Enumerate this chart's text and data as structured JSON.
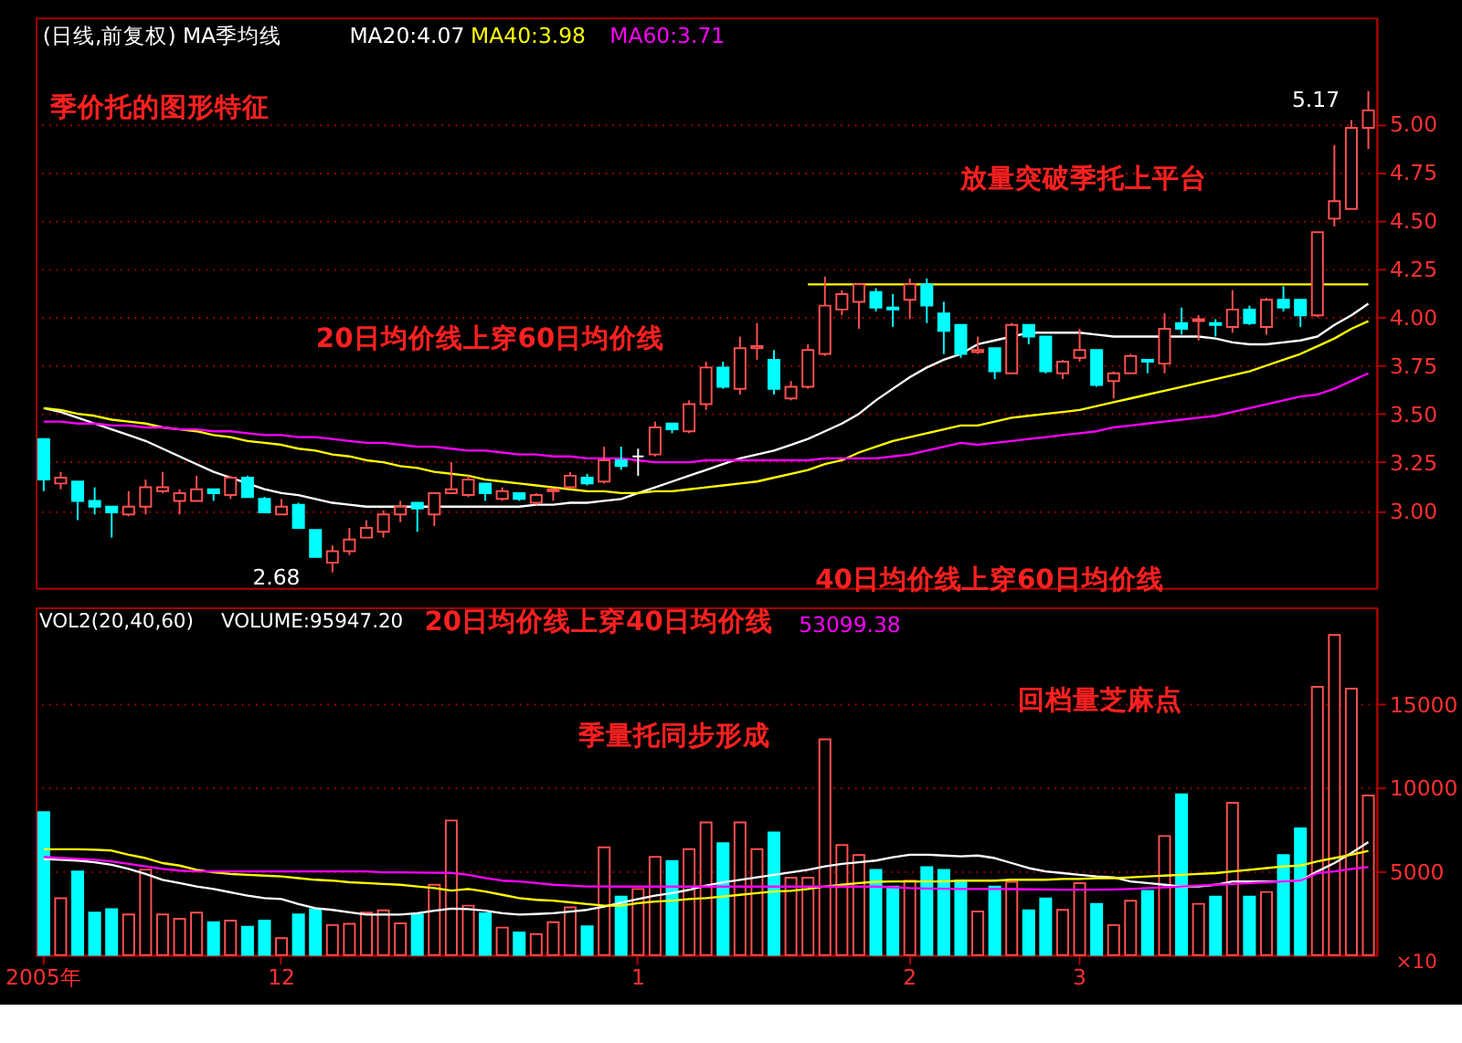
{
  "chart_data": [
    {
      "type": "candlestick",
      "title": "季价托的图形特征",
      "subtitle": "(日线,前复权) MA季均线",
      "categories": [
        null,
        null,
        null,
        null,
        null,
        null,
        null,
        null,
        null,
        null,
        null,
        null,
        null,
        null,
        null,
        null,
        null,
        null,
        null,
        null,
        null,
        null,
        null,
        null,
        null,
        null,
        null,
        null,
        null,
        null,
        null,
        null,
        null,
        null,
        null,
        null,
        null,
        null,
        null,
        null,
        null,
        null,
        null,
        null,
        null,
        null,
        null,
        null,
        null,
        null,
        null,
        null,
        null,
        null,
        null,
        null,
        null,
        null,
        null,
        null,
        null,
        null,
        null,
        null,
        null,
        null,
        null,
        null,
        null,
        null,
        null,
        null,
        null,
        null,
        null,
        null,
        null,
        null,
        null
      ],
      "ohlc": [
        [
          3.37,
          3.37,
          3.1,
          3.16
        ],
        [
          3.14,
          3.2,
          3.11,
          3.17
        ],
        [
          3.15,
          3.15,
          2.95,
          3.05
        ],
        [
          3.05,
          3.12,
          2.98,
          3.02
        ],
        [
          3.02,
          3.02,
          2.86,
          2.99
        ],
        [
          2.98,
          3.1,
          2.97,
          3.02
        ],
        [
          3.02,
          3.16,
          2.98,
          3.12
        ],
        [
          3.1,
          3.2,
          3.09,
          3.12
        ],
        [
          3.05,
          3.11,
          2.98,
          3.09
        ],
        [
          3.05,
          3.18,
          3.05,
          3.11
        ],
        [
          3.11,
          3.11,
          3.05,
          3.09
        ],
        [
          3.08,
          3.18,
          3.06,
          3.17
        ],
        [
          3.17,
          3.18,
          3.07,
          3.07
        ],
        [
          3.06,
          3.07,
          2.99,
          2.99
        ],
        [
          2.98,
          3.06,
          2.98,
          3.02
        ],
        [
          3.03,
          3.04,
          2.91,
          2.91
        ],
        [
          2.9,
          2.9,
          2.76,
          2.76
        ],
        [
          2.73,
          2.82,
          2.68,
          2.79
        ],
        [
          2.79,
          2.91,
          2.77,
          2.85
        ],
        [
          2.86,
          2.95,
          2.86,
          2.91
        ],
        [
          2.89,
          3.0,
          2.86,
          2.98
        ],
        [
          2.98,
          3.05,
          2.94,
          3.02
        ],
        [
          3.04,
          3.04,
          2.89,
          3.01
        ],
        [
          2.98,
          3.09,
          2.92,
          3.09
        ],
        [
          3.09,
          3.25,
          3.09,
          3.11
        ],
        [
          3.08,
          3.18,
          3.07,
          3.16
        ],
        [
          3.14,
          3.14,
          3.05,
          3.09
        ],
        [
          3.06,
          3.12,
          3.05,
          3.1
        ],
        [
          3.09,
          3.09,
          3.05,
          3.06
        ],
        [
          3.04,
          3.09,
          3.03,
          3.08
        ],
        [
          3.1,
          3.11,
          3.05,
          3.11
        ],
        [
          3.12,
          3.2,
          3.12,
          3.18
        ],
        [
          3.17,
          3.19,
          3.13,
          3.14
        ],
        [
          3.15,
          3.33,
          3.14,
          3.26
        ],
        [
          3.26,
          3.33,
          3.21,
          3.23
        ],
        [
          3.28,
          3.32,
          3.18,
          3.28
        ],
        [
          3.29,
          3.46,
          3.28,
          3.43
        ],
        [
          3.45,
          3.45,
          3.4,
          3.42
        ],
        [
          3.41,
          3.57,
          3.4,
          3.55
        ],
        [
          3.55,
          3.77,
          3.52,
          3.74
        ],
        [
          3.74,
          3.77,
          3.63,
          3.64
        ],
        [
          3.63,
          3.9,
          3.6,
          3.84
        ],
        [
          3.84,
          3.97,
          3.78,
          3.85
        ],
        [
          3.78,
          3.83,
          3.6,
          3.63
        ],
        [
          3.58,
          3.67,
          3.57,
          3.64
        ],
        [
          3.64,
          3.86,
          3.63,
          3.83
        ],
        [
          3.81,
          4.21,
          3.8,
          4.06
        ],
        [
          4.04,
          4.14,
          4.01,
          4.12
        ],
        [
          4.08,
          4.17,
          3.94,
          4.17
        ],
        [
          4.13,
          4.15,
          4.03,
          4.05
        ],
        [
          4.05,
          4.12,
          3.95,
          4.04
        ],
        [
          4.09,
          4.2,
          3.99,
          4.17
        ],
        [
          4.17,
          4.2,
          3.97,
          4.06
        ],
        [
          4.02,
          4.08,
          3.81,
          3.93
        ],
        [
          3.96,
          3.96,
          3.79,
          3.81
        ],
        [
          3.82,
          3.9,
          3.81,
          3.83
        ],
        [
          3.84,
          3.84,
          3.68,
          3.72
        ],
        [
          3.71,
          3.97,
          3.71,
          3.96
        ],
        [
          3.96,
          3.96,
          3.86,
          3.9
        ],
        [
          3.9,
          3.9,
          3.71,
          3.72
        ],
        [
          3.71,
          3.78,
          3.68,
          3.77
        ],
        [
          3.79,
          3.94,
          3.77,
          3.83
        ],
        [
          3.83,
          3.83,
          3.64,
          3.65
        ],
        [
          3.67,
          3.72,
          3.58,
          3.71
        ],
        [
          3.71,
          3.81,
          3.71,
          3.8
        ],
        [
          3.78,
          3.78,
          3.71,
          3.77
        ],
        [
          3.76,
          4.02,
          3.71,
          3.94
        ],
        [
          3.97,
          4.05,
          3.91,
          3.94
        ],
        [
          3.98,
          4.01,
          3.88,
          3.99
        ],
        [
          3.97,
          3.99,
          3.9,
          3.96
        ],
        [
          3.95,
          4.14,
          3.92,
          4.04
        ],
        [
          4.04,
          4.06,
          3.96,
          3.97
        ],
        [
          3.95,
          4.1,
          3.91,
          4.09
        ],
        [
          4.09,
          4.16,
          4.03,
          4.05
        ],
        [
          4.09,
          4.09,
          3.95,
          4.01
        ],
        [
          4.01,
          4.44,
          4.0,
          4.44
        ],
        [
          4.51,
          4.89,
          4.47,
          4.6
        ],
        [
          4.56,
          5.02,
          4.56,
          4.98
        ],
        [
          4.98,
          5.17,
          4.87,
          5.07
        ]
      ],
      "colors": [
        "#00ffff",
        "#ff5050",
        "#00ffff",
        "#00ffff",
        "#00ffff",
        "#ff5050",
        "#ff5050",
        "#ff5050",
        "#ff5050",
        "#ff5050",
        "#00ffff",
        "#ff5050",
        "#00ffff",
        "#00ffff",
        "#ff5050",
        "#00ffff",
        "#00ffff",
        "#ff5050",
        "#ff5050",
        "#ff5050",
        "#ff5050",
        "#ff5050",
        "#00ffff",
        "#ff5050",
        "#ff5050",
        "#ff5050",
        "#00ffff",
        "#ff5050",
        "#00ffff",
        "#ff5050",
        "#ff5050",
        "#ff5050",
        "#00ffff",
        "#ff5050",
        "#00ffff",
        "#ffffff",
        "#ff5050",
        "#00ffff",
        "#ff5050",
        "#ff5050",
        "#00ffff",
        "#ff5050",
        "#ff5050",
        "#00ffff",
        "#ff5050",
        "#ff5050",
        "#ff5050",
        "#ff5050",
        "#ff5050",
        "#00ffff",
        "#00ffff",
        "#ff5050",
        "#00ffff",
        "#00ffff",
        "#00ffff",
        "#ff5050",
        "#00ffff",
        "#ff5050",
        "#00ffff",
        "#00ffff",
        "#ff5050",
        "#ff5050",
        "#00ffff",
        "#ff5050",
        "#ff5050",
        "#00ffff",
        "#ff5050",
        "#00ffff",
        "#ff5050",
        "#00ffff",
        "#ff5050",
        "#00ffff",
        "#ff5050",
        "#00ffff",
        "#00ffff",
        "#ff5050",
        "#ff5050",
        "#ff5050",
        "#ff5050"
      ],
      "series": [
        {
          "type": "line",
          "name": "MA20:4.07",
          "color": "#ffffff",
          "values": [
            3.53,
            3.51,
            3.48,
            3.45,
            3.42,
            3.39,
            3.36,
            3.32,
            3.28,
            3.24,
            3.2,
            3.17,
            3.14,
            3.11,
            3.09,
            3.08,
            3.06,
            3.04,
            3.03,
            3.02,
            3.02,
            3.02,
            3.02,
            3.02,
            3.02,
            3.02,
            3.02,
            3.02,
            3.02,
            3.03,
            3.03,
            3.04,
            3.04,
            3.05,
            3.06,
            3.09,
            3.12,
            3.15,
            3.18,
            3.21,
            3.24,
            3.27,
            3.29,
            3.31,
            3.34,
            3.37,
            3.41,
            3.45,
            3.5,
            3.57,
            3.63,
            3.69,
            3.74,
            3.78,
            3.81,
            3.86,
            3.88,
            3.9,
            3.92,
            3.92,
            3.92,
            3.92,
            3.91,
            3.9,
            3.9,
            3.9,
            3.9,
            3.9,
            3.9,
            3.89,
            3.87,
            3.86,
            3.86,
            3.87,
            3.88,
            3.9,
            3.96,
            4.01,
            4.07
          ]
        },
        {
          "type": "line",
          "name": "MA40:3.98",
          "color": "#ffff00",
          "values": [
            3.53,
            3.52,
            3.5,
            3.49,
            3.47,
            3.46,
            3.45,
            3.43,
            3.42,
            3.41,
            3.39,
            3.38,
            3.36,
            3.35,
            3.34,
            3.32,
            3.31,
            3.29,
            3.28,
            3.26,
            3.25,
            3.23,
            3.22,
            3.2,
            3.19,
            3.18,
            3.16,
            3.15,
            3.14,
            3.13,
            3.12,
            3.11,
            3.1,
            3.1,
            3.09,
            3.09,
            3.1,
            3.1,
            3.11,
            3.12,
            3.13,
            3.14,
            3.15,
            3.17,
            3.19,
            3.21,
            3.24,
            3.26,
            3.3,
            3.33,
            3.36,
            3.38,
            3.4,
            3.42,
            3.44,
            3.44,
            3.46,
            3.48,
            3.49,
            3.5,
            3.51,
            3.52,
            3.54,
            3.56,
            3.58,
            3.6,
            3.62,
            3.64,
            3.66,
            3.68,
            3.7,
            3.72,
            3.75,
            3.78,
            3.81,
            3.85,
            3.89,
            3.94,
            3.98
          ]
        },
        {
          "type": "line",
          "name": "MA60:3.71",
          "color": "#ff00ff",
          "values": [
            3.46,
            3.46,
            3.45,
            3.45,
            3.44,
            3.44,
            3.43,
            3.43,
            3.42,
            3.42,
            3.41,
            3.41,
            3.4,
            3.39,
            3.39,
            3.38,
            3.38,
            3.37,
            3.36,
            3.35,
            3.35,
            3.34,
            3.33,
            3.33,
            3.32,
            3.31,
            3.31,
            3.3,
            3.29,
            3.29,
            3.28,
            3.28,
            3.27,
            3.27,
            3.27,
            3.26,
            3.25,
            3.25,
            3.25,
            3.26,
            3.26,
            3.26,
            3.26,
            3.26,
            3.26,
            3.26,
            3.27,
            3.27,
            3.27,
            3.27,
            3.28,
            3.29,
            3.31,
            3.33,
            3.35,
            3.34,
            3.35,
            3.36,
            3.37,
            3.38,
            3.39,
            3.4,
            3.41,
            3.43,
            3.44,
            3.45,
            3.46,
            3.47,
            3.48,
            3.49,
            3.51,
            3.53,
            3.55,
            3.57,
            3.59,
            3.6,
            3.63,
            3.67,
            3.71
          ]
        },
        {
          "type": "line",
          "color": "#ffff00",
          "values": [
            null,
            null,
            null,
            null,
            null,
            null,
            null,
            null,
            null,
            null,
            null,
            null,
            null,
            null,
            null,
            null,
            null,
            null,
            null,
            null,
            null,
            null,
            null,
            null,
            null,
            null,
            null,
            null,
            null,
            null,
            null,
            null,
            null,
            null,
            null,
            null,
            null,
            null,
            null,
            null,
            null,
            null,
            null,
            null,
            null,
            4.17,
            4.17,
            4.17,
            4.17,
            4.17,
            4.17,
            4.17,
            4.17,
            4.17,
            4.17,
            4.17,
            4.17,
            4.17,
            4.17,
            4.17,
            4.17,
            4.17,
            4.17,
            4.17,
            4.17,
            4.17,
            4.17,
            4.17,
            4.17,
            4.17,
            4.17,
            4.17,
            4.17,
            4.17,
            4.17,
            4.17,
            4.17,
            4.17,
            4.17
          ]
        }
      ],
      "ylim": [
        2.6,
        5.55
      ],
      "yticks": [
        {
          "value": 3,
          "label": "3.00"
        },
        {
          "value": 3.25,
          "label": "3.25"
        },
        {
          "value": 3.5,
          "label": "3.50"
        },
        {
          "value": 3.75,
          "label": "3.75"
        },
        {
          "value": 4,
          "label": "4.00"
        },
        {
          "value": 4.25,
          "label": "4.25"
        },
        {
          "value": 4.5,
          "label": "4.50"
        },
        {
          "value": 4.75,
          "label": "4.75"
        },
        {
          "value": 5,
          "label": "5.00"
        }
      ],
      "grid": "y",
      "legend": "top left",
      "tick_labels": "y",
      "annotations": [
        "2.68",
        "5.17",
        "20日均价线上穿60日均价线",
        "40日均价线上穿60日均价线",
        "放量突破季托上平台"
      ]
    },
    {
      "type": "bar",
      "categories": [
        "2005年",
        null,
        null,
        null,
        null,
        null,
        null,
        null,
        null,
        null,
        null,
        null,
        null,
        null,
        "12",
        null,
        null,
        null,
        null,
        null,
        null,
        null,
        null,
        null,
        null,
        null,
        null,
        null,
        null,
        null,
        null,
        null,
        null,
        null,
        null,
        "1",
        null,
        null,
        null,
        null,
        null,
        null,
        null,
        null,
        null,
        null,
        null,
        null,
        null,
        null,
        null,
        "2",
        null,
        null,
        null,
        null,
        null,
        null,
        null,
        null,
        null,
        "3",
        null,
        null,
        null,
        null,
        null,
        null,
        null,
        null,
        null,
        null,
        null,
        null,
        null,
        null,
        null,
        null,
        null
      ],
      "values": [
        8550,
        3390,
        5000,
        2530,
        2740,
        2420,
        5110,
        2420,
        2170,
        2530,
        1960,
        2060,
        1690,
        2060,
        1000,
        2420,
        2740,
        1790,
        1860,
        2530,
        2670,
        1890,
        2420,
        4200,
        8050,
        2950,
        2490,
        1640,
        1350,
        1250,
        1960,
        2850,
        1710,
        6440,
        3490,
        3950,
        5870,
        5620,
        6330,
        7930,
        6690,
        7930,
        6330,
        7330,
        4630,
        4630,
        12910,
        6580,
        5980,
        5090,
        4090,
        4450,
        5260,
        5090,
        4450,
        2600,
        4090,
        4380,
        2670,
        3380,
        2700,
        4300,
        3060,
        1790,
        3240,
        3840,
        7120,
        9610,
        3060,
        3490,
        9110,
        3490,
        3770,
        5980,
        7580,
        16050,
        19150,
        15940,
        9540
      ],
      "colors": [
        "#00ffff",
        "#ff5050",
        "#00ffff",
        "#00ffff",
        "#00ffff",
        "#ff5050",
        "#ff5050",
        "#ff5050",
        "#ff5050",
        "#ff5050",
        "#00ffff",
        "#ff5050",
        "#00ffff",
        "#00ffff",
        "#ff5050",
        "#00ffff",
        "#00ffff",
        "#ff5050",
        "#ff5050",
        "#ff5050",
        "#ff5050",
        "#ff5050",
        "#00ffff",
        "#ff5050",
        "#ff5050",
        "#ff5050",
        "#00ffff",
        "#ff5050",
        "#00ffff",
        "#ff5050",
        "#ff5050",
        "#ff5050",
        "#00ffff",
        "#ff5050",
        "#00ffff",
        "#ff5050",
        "#ff5050",
        "#00ffff",
        "#ff5050",
        "#ff5050",
        "#00ffff",
        "#ff5050",
        "#ff5050",
        "#00ffff",
        "#ff5050",
        "#ff5050",
        "#ff5050",
        "#ff5050",
        "#ff5050",
        "#00ffff",
        "#00ffff",
        "#ff5050",
        "#00ffff",
        "#00ffff",
        "#00ffff",
        "#ff5050",
        "#00ffff",
        "#ff5050",
        "#00ffff",
        "#00ffff",
        "#ff5050",
        "#ff5050",
        "#00ffff",
        "#ff5050",
        "#ff5050",
        "#00ffff",
        "#ff5050",
        "#00ffff",
        "#ff5050",
        "#00ffff",
        "#ff5050",
        "#00ffff",
        "#ff5050",
        "#00ffff",
        "#00ffff",
        "#ff5050",
        "#ff5050",
        "#ff5050",
        "#ff5050"
      ],
      "series": [
        {
          "type": "line",
          "color": "#ffffff",
          "values": [
            5740,
            5700,
            5650,
            5550,
            5400,
            5150,
            4850,
            4500,
            4300,
            4100,
            3950,
            3750,
            3550,
            3400,
            3350,
            3050,
            2800,
            2700,
            2550,
            2420,
            2420,
            2420,
            2500,
            2650,
            2770,
            2750,
            2650,
            2500,
            2420,
            2450,
            2500,
            2600,
            2700,
            2900,
            3130,
            3350,
            3550,
            3700,
            3900,
            4150,
            4350,
            4500,
            4650,
            4800,
            4950,
            5100,
            5300,
            5450,
            5550,
            5650,
            5850,
            6000,
            6000,
            5950,
            5900,
            5950,
            5800,
            5500,
            5200,
            5000,
            4900,
            4800,
            4700,
            4650,
            4400,
            4300,
            4200,
            4100,
            4100,
            4200,
            4400,
            4400,
            4400,
            4400,
            4450,
            5000,
            5500,
            6100,
            6760
          ]
        },
        {
          "type": "line",
          "color": "#ffff00",
          "values": [
            6330,
            6330,
            6330,
            6300,
            6250,
            6000,
            5800,
            5500,
            5350,
            5100,
            4950,
            4850,
            4800,
            4750,
            4700,
            4600,
            4500,
            4450,
            4350,
            4300,
            4250,
            4200,
            4100,
            4000,
            3850,
            3950,
            3800,
            3600,
            3400,
            3300,
            3250,
            3150,
            3050,
            2950,
            2950,
            3100,
            3200,
            3250,
            3350,
            3400,
            3500,
            3600,
            3700,
            3800,
            3840,
            3950,
            4100,
            4200,
            4300,
            4380,
            4400,
            4400,
            4400,
            4400,
            4450,
            4450,
            4450,
            4500,
            4500,
            4500,
            4550,
            4550,
            4600,
            4600,
            4650,
            4700,
            4750,
            4800,
            4850,
            4900,
            5000,
            5100,
            5200,
            5300,
            5350,
            5600,
            5800,
            6000,
            6230
          ]
        },
        {
          "type": "line",
          "name": "53099.38",
          "color": "#ff00ff",
          "values": [
            5870,
            5800,
            5750,
            5700,
            5600,
            5450,
            5300,
            5150,
            5050,
            5000,
            5000,
            5000,
            5000,
            5000,
            5000,
            5000,
            5000,
            5000,
            5000,
            5000,
            4950,
            4950,
            4930,
            4920,
            4910,
            4800,
            4600,
            4450,
            4400,
            4300,
            4200,
            4150,
            4100,
            4100,
            4090,
            4090,
            4090,
            4090,
            4090,
            4090,
            4090,
            4090,
            4090,
            4090,
            4090,
            4090,
            4090,
            4090,
            4090,
            4090,
            4050,
            4000,
            3980,
            3960,
            3950,
            3950,
            3950,
            3940,
            3930,
            3920,
            3910,
            3910,
            3910,
            3920,
            3950,
            4000,
            4050,
            4100,
            4150,
            4200,
            4250,
            4300,
            4350,
            4400,
            4450,
            4900,
            5000,
            5150,
            5260
          ]
        }
      ],
      "ylim": [
        0,
        20800
      ],
      "yticks": [
        5000,
        10000,
        15000
      ],
      "grid": "y",
      "legend": "top",
      "annotations": [
        "VOL2(20,40,60)",
        "VOLUME:95947.20",
        "20日均价线上穿40日均价线",
        "季量托同步形成",
        "回档量芝麻点"
      ],
      "ylabel": "×10"
    }
  ]
}
